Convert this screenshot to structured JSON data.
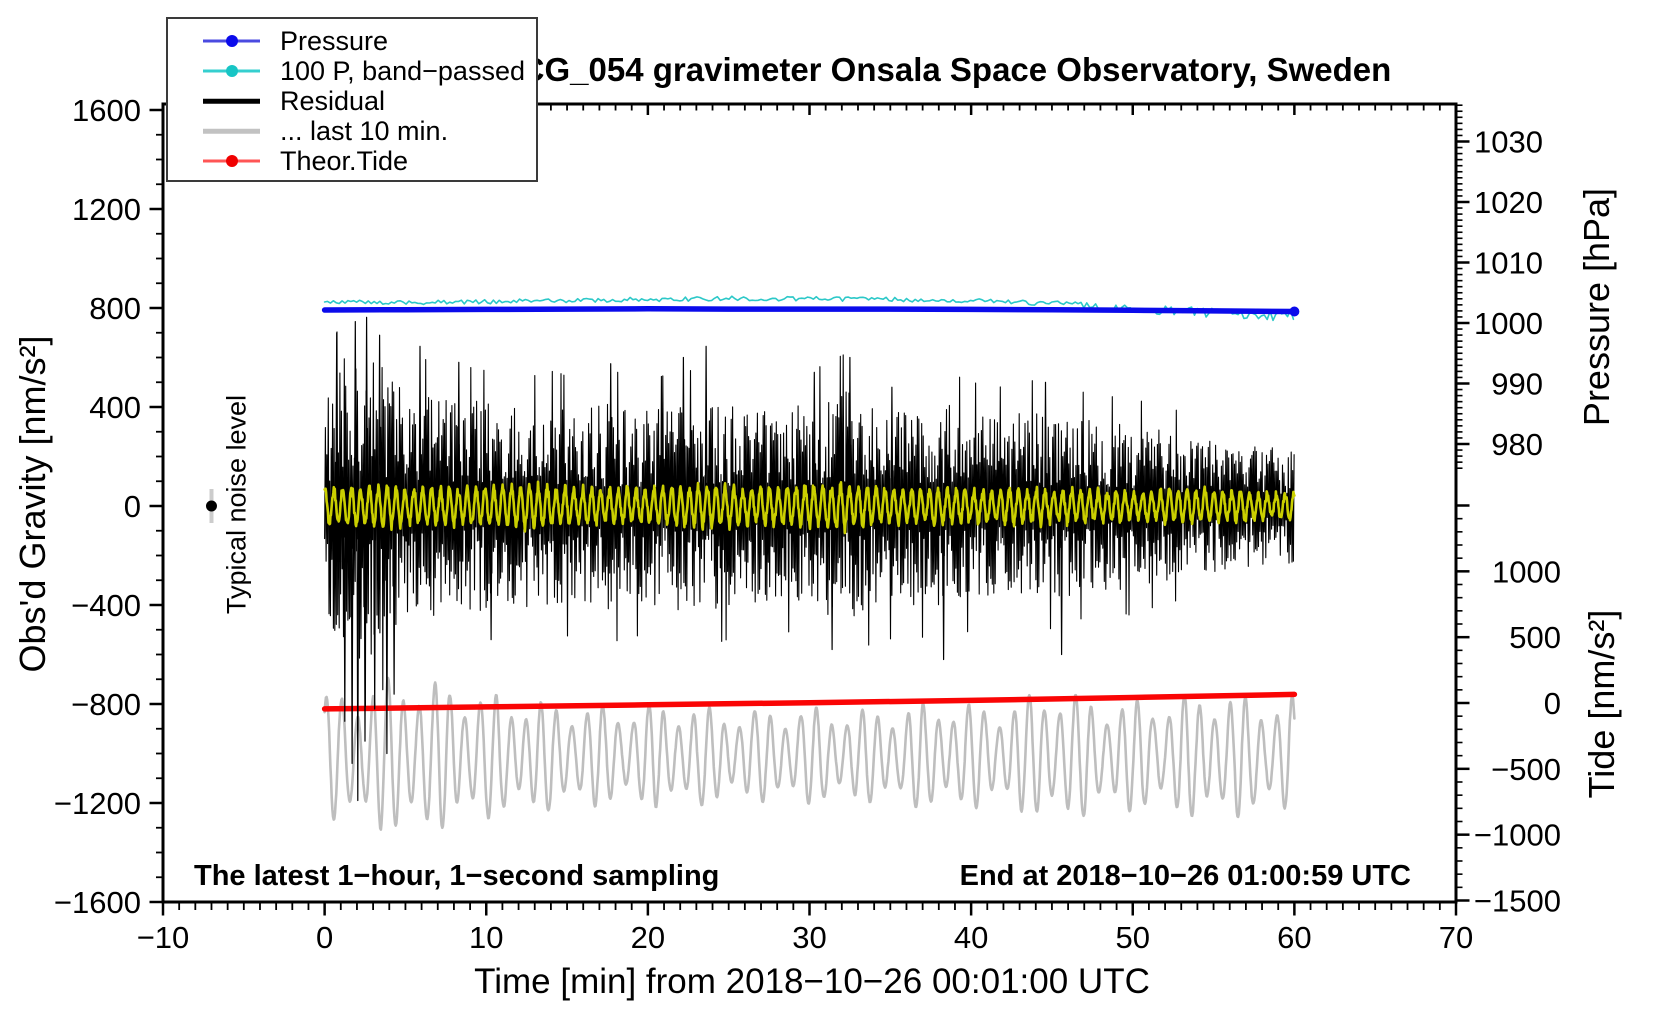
{
  "chart_data": {
    "type": "line",
    "title": "SCG_054 gravimeter Onsala Space Observatory, Sweden",
    "xlabel": "Time [min] from 2018−10−26 00:01:00 UTC",
    "grid": false,
    "legend_position": "top-left",
    "annotations": {
      "noise_label": "Typical noise level",
      "noise_point": {
        "t_min": -7,
        "gravity_nms2": 0
      },
      "bottom_left": "The latest 1−hour, 1−second sampling",
      "bottom_right": "End at 2018−10−26 01:00:59 UTC"
    },
    "axes": {
      "x": {
        "label": "Time [min] from 2018−10−26 00:01:00 UTC",
        "min": -10,
        "max": 70,
        "major_step": 10,
        "minor_step": 1,
        "major_values": [
          -10,
          0,
          10,
          20,
          30,
          40,
          50,
          60,
          70
        ],
        "tick_labels": [
          "−10",
          "0",
          "10",
          "20",
          "30",
          "40",
          "50",
          "60",
          "70"
        ]
      },
      "gravity": {
        "label": "Obs'd Gravity [nm/s²]",
        "min": -1600,
        "max": 1600,
        "major_step": 400,
        "minor_step": 100,
        "major_values": [
          1600,
          1200,
          800,
          400,
          0,
          -400,
          -800,
          -1200,
          -1600
        ],
        "tick_labels": [
          "1600",
          "1200",
          "800",
          "400",
          "0",
          "−400",
          "−800",
          "−1200",
          "−1600"
        ]
      },
      "pressure": {
        "label": "Pressure [hPa]",
        "major_values": [
          1030,
          1020,
          1010,
          1000,
          990,
          980
        ],
        "tick_labels": [
          "1030",
          "1020",
          "1010",
          "1000",
          "990",
          "980"
        ],
        "minor_step": 1,
        "minor_range": [
          976,
          1036
        ]
      },
      "tide": {
        "label": "Tide [nm/s²]",
        "major_values": [
          1500,
          1000,
          500,
          0,
          -500,
          -1000,
          -1500
        ],
        "labeled_values": [
          1000,
          500,
          0,
          -500,
          -1000,
          -1500
        ],
        "tick_labels": [
          "1000",
          "500",
          "0",
          "−500",
          "−1000",
          "−1500"
        ],
        "minor_step": 100,
        "minor_range": [
          -1500,
          1500
        ]
      }
    },
    "legend": {
      "items": [
        {
          "label": "Pressure",
          "line_color": "#4a4ae0",
          "line_width": 3,
          "marker_color": "#0b0beb"
        },
        {
          "label": "100 P, band−passed",
          "line_color": "#35cfcf",
          "line_width": 3,
          "marker_color": "#17c5c5"
        },
        {
          "label": "Residual",
          "line_color": "#000000",
          "line_width": 4.5,
          "marker_color": null
        },
        {
          "label": "... last 10 min.",
          "line_color": "#c2c2c2",
          "line_width": 4.5,
          "marker_color": null
        },
        {
          "label": "Theor.Tide",
          "line_color": "#ff5555",
          "line_width": 3,
          "marker_color": "#f00000"
        }
      ]
    },
    "series": {
      "pressure_hPa": {
        "color": "#0b0beb",
        "width": 5.5,
        "t": [
          0,
          5,
          10,
          15,
          20,
          25,
          30,
          35,
          40,
          45,
          50,
          55,
          60
        ],
        "v": [
          1002.15,
          1002.2,
          1002.25,
          1002.3,
          1002.35,
          1002.3,
          1002.3,
          1002.3,
          1002.25,
          1002.2,
          1002.1,
          1002.0,
          1001.9
        ]
      },
      "bandpassed_pressure_hPa": {
        "color": "#2cc8c8",
        "width": 1.6,
        "t": [
          0,
          5,
          10,
          15,
          20,
          25,
          30,
          35,
          40,
          45,
          50,
          55,
          60
        ],
        "v": [
          1003.6,
          1003.4,
          1003.5,
          1003.7,
          1003.9,
          1004.1,
          1004.0,
          1003.9,
          1003.7,
          1003.3,
          1002.4,
          1001.6,
          1001.2
        ],
        "noise_amp_hPa": [
          [
            0,
            0.35
          ],
          [
            20,
            0.4
          ],
          [
            35,
            0.35
          ],
          [
            44,
            0.45
          ],
          [
            50,
            0.7
          ],
          [
            55,
            0.85
          ],
          [
            60,
            0.95
          ]
        ]
      },
      "residual_nms2": {
        "color": "#000000",
        "width": 1.1,
        "mean": 0,
        "envelope": [
          [
            0,
            430
          ],
          [
            1,
            600
          ],
          [
            2,
            660
          ],
          [
            3,
            620
          ],
          [
            4,
            560
          ],
          [
            5,
            500
          ],
          [
            6,
            470
          ],
          [
            8,
            450
          ],
          [
            10,
            430
          ],
          [
            12,
            410
          ],
          [
            14,
            430
          ],
          [
            16,
            405
          ],
          [
            18,
            430
          ],
          [
            20,
            405
          ],
          [
            22,
            430
          ],
          [
            24,
            445
          ],
          [
            26,
            405
          ],
          [
            28,
            385
          ],
          [
            30,
            430
          ],
          [
            32,
            480
          ],
          [
            33,
            460
          ],
          [
            34,
            440
          ],
          [
            36,
            410
          ],
          [
            38,
            430
          ],
          [
            40,
            395
          ],
          [
            42,
            375
          ],
          [
            44,
            405
          ],
          [
            46,
            375
          ],
          [
            48,
            345
          ],
          [
            50,
            345
          ],
          [
            52,
            315
          ],
          [
            54,
            285
          ],
          [
            56,
            265
          ],
          [
            58,
            245
          ],
          [
            60,
            235
          ]
        ],
        "spikes_up": [
          [
            0.75,
            700
          ],
          [
            1.9,
            745
          ],
          [
            2.6,
            762
          ],
          [
            3.4,
            690
          ],
          [
            5.9,
            645
          ],
          [
            8.3,
            580
          ],
          [
            17.7,
            575
          ],
          [
            22.2,
            600
          ],
          [
            23.6,
            645
          ],
          [
            30.3,
            540
          ],
          [
            32.5,
            600
          ],
          [
            35.1,
            480
          ],
          [
            44.6,
            500
          ]
        ],
        "spikes_down": [
          [
            1.25,
            -870
          ],
          [
            1.7,
            -1040
          ],
          [
            2.05,
            -1190
          ],
          [
            2.5,
            -950
          ],
          [
            3.1,
            -820
          ],
          [
            3.85,
            -1000
          ],
          [
            4.3,
            -760
          ],
          [
            10.3,
            -540
          ],
          [
            31.4,
            -580
          ],
          [
            38.3,
            -620
          ],
          [
            45.6,
            -600
          ]
        ]
      },
      "residual_filtered_nms2": {
        "color": "#cacf00",
        "width": 2.6,
        "period_min": 0.55,
        "envelope": [
          [
            0,
            75
          ],
          [
            3,
            95
          ],
          [
            5,
            85
          ],
          [
            8,
            80
          ],
          [
            10,
            85
          ],
          [
            13,
            95
          ],
          [
            15,
            85
          ],
          [
            18,
            75
          ],
          [
            20,
            80
          ],
          [
            23,
            90
          ],
          [
            25,
            85
          ],
          [
            28,
            80
          ],
          [
            30,
            95
          ],
          [
            32,
            100
          ],
          [
            34,
            85
          ],
          [
            36,
            75
          ],
          [
            38,
            80
          ],
          [
            40,
            72
          ],
          [
            43,
            80
          ],
          [
            45,
            75
          ],
          [
            48,
            68
          ],
          [
            50,
            65
          ],
          [
            53,
            72
          ],
          [
            55,
            70
          ],
          [
            58,
            62
          ],
          [
            60,
            58
          ]
        ]
      },
      "last10min_nms2": {
        "color": "#bebebe",
        "width": 2.6,
        "baseline_gravity": -1010,
        "period_min": 0.95,
        "envelope": [
          [
            0,
            250
          ],
          [
            3,
            300
          ],
          [
            5,
            340
          ],
          [
            7,
            300
          ],
          [
            10,
            260
          ],
          [
            14,
            220
          ],
          [
            18,
            205
          ],
          [
            22,
            215
          ],
          [
            26,
            185
          ],
          [
            30,
            200
          ],
          [
            34,
            190
          ],
          [
            38,
            225
          ],
          [
            42,
            205
          ],
          [
            45,
            285
          ],
          [
            48,
            225
          ],
          [
            52,
            235
          ],
          [
            55,
            265
          ],
          [
            58,
            235
          ],
          [
            60,
            245
          ]
        ]
      },
      "theor_tide_nms2": {
        "color": "#fa0505",
        "width": 5.5,
        "t": [
          0,
          10,
          20,
          30,
          40,
          50,
          60
        ],
        "v": [
          -45,
          -30,
          -14,
          2,
          20,
          42,
          65
        ]
      }
    },
    "colors": {
      "frame": "#000000",
      "background": "#ffffff",
      "noise_marker": "#000000",
      "noise_marker_bar": "#cccccc"
    }
  }
}
